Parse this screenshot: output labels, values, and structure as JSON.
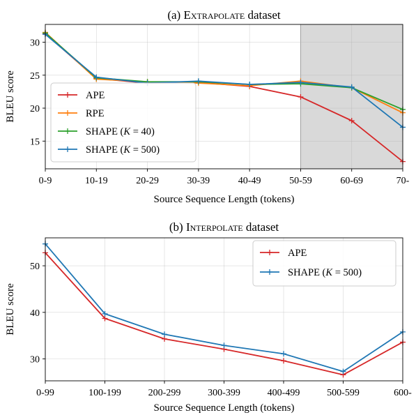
{
  "chart_data": [
    {
      "type": "line",
      "title_prefix": "(a) ",
      "title_smallcaps": "Extrapolate",
      "title_suffix": " dataset",
      "xlabel": "Source Sequence Length (tokens)",
      "ylabel": "BLEU score",
      "categories": [
        "0-9",
        "10-19",
        "20-29",
        "30-39",
        "40-49",
        "50-59",
        "60-69",
        "70-"
      ],
      "ylim": [
        10.8,
        32.7
      ],
      "yticks": [
        15,
        20,
        25,
        30
      ],
      "grid": true,
      "shaded_x_range": [
        5,
        7
      ],
      "legend_position": "lower-left",
      "series": [
        {
          "name": "APE",
          "color": "#d62728",
          "values": [
            31.3,
            24.5,
            23.8,
            23.9,
            23.3,
            21.7,
            18.1,
            11.9
          ]
        },
        {
          "name": "RPE",
          "color": "#ff7f0e",
          "values": [
            31.5,
            24.4,
            24.0,
            23.8,
            23.4,
            24.1,
            23.1,
            19.3
          ]
        },
        {
          "name": "SHAPE (K = 40)",
          "color": "#2ca02c",
          "values": [
            31.4,
            24.6,
            24.0,
            24.0,
            23.6,
            23.7,
            23.1,
            19.8
          ]
        },
        {
          "name": "SHAPE (K = 500)",
          "color": "#1f77b4",
          "values": [
            31.2,
            24.7,
            23.8,
            24.1,
            23.6,
            23.9,
            23.2,
            17.1
          ]
        }
      ]
    },
    {
      "type": "line",
      "title_prefix": "(b) ",
      "title_smallcaps": "Interpolate",
      "title_suffix": " dataset",
      "xlabel": "Source Sequence Length (tokens)",
      "ylabel": "BLEU score",
      "categories": [
        "0-99",
        "100-199",
        "200-299",
        "300-399",
        "400-499",
        "500-599",
        "600-"
      ],
      "ylim": [
        25.3,
        56.0
      ],
      "yticks": [
        30,
        40,
        50
      ],
      "grid": true,
      "legend_position": "upper-right",
      "series": [
        {
          "name": "APE",
          "color": "#d62728",
          "values": [
            52.8,
            38.7,
            34.3,
            32.1,
            29.6,
            26.6,
            33.6
          ]
        },
        {
          "name": "SHAPE (K = 500)",
          "color": "#1f77b4",
          "values": [
            54.7,
            39.7,
            35.3,
            32.9,
            31.1,
            27.3,
            35.8
          ]
        }
      ]
    }
  ]
}
